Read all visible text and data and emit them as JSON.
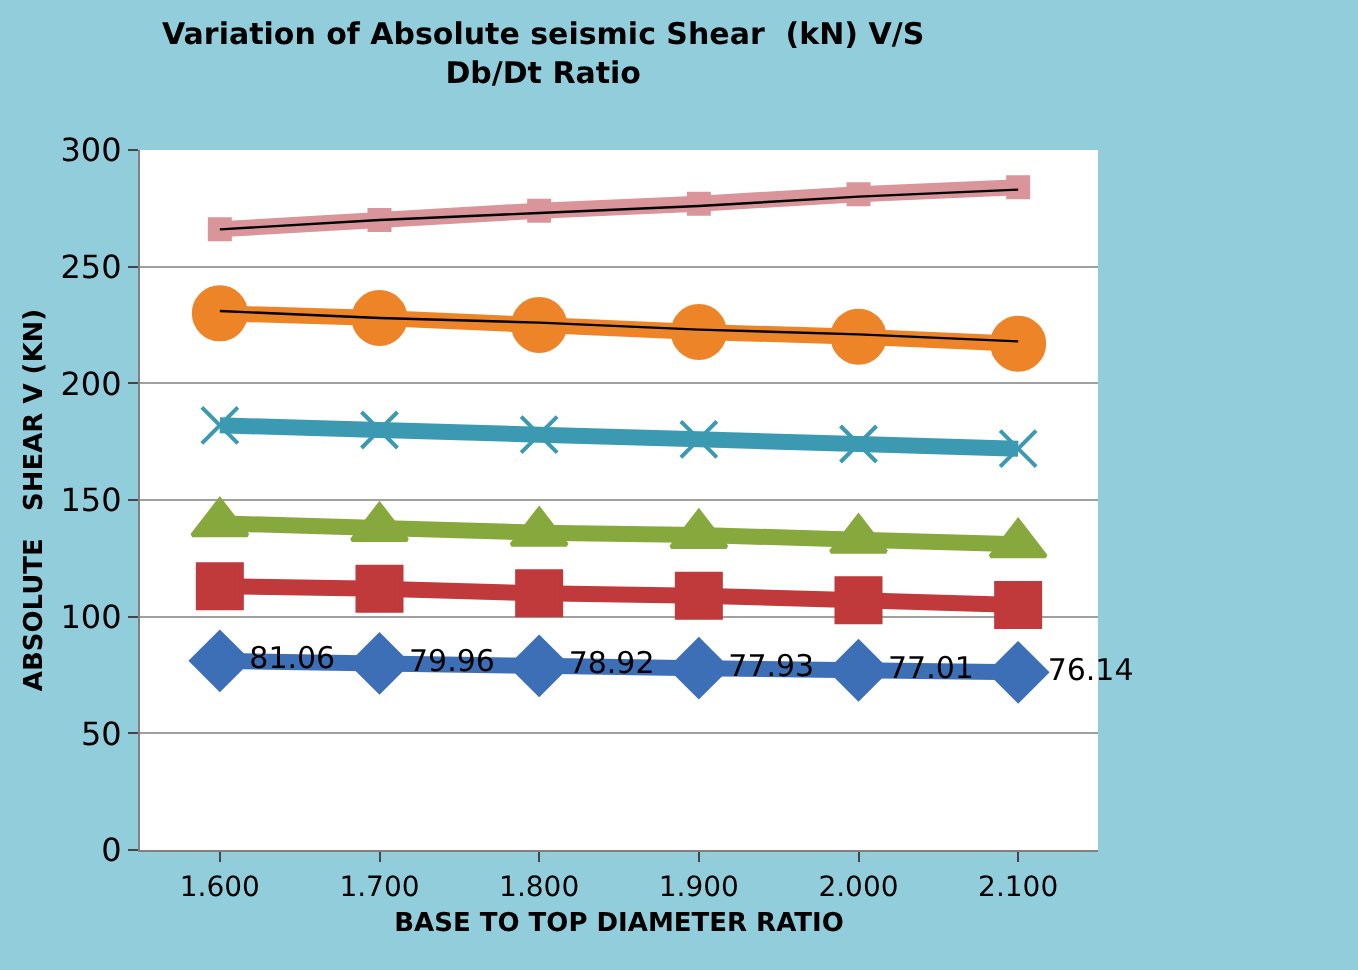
{
  "chart_data": {
    "type": "line",
    "title": "Variation of Absolute seismic Shear  (kN) V/S Db/Dt Ratio",
    "xlabel": "BASE TO TOP DIAMETER RATIO",
    "ylabel": "ABSOLUTE   SHEAR V (KN)",
    "categories": [
      "1.600",
      "1.700",
      "1.800",
      "1.900",
      "2.000",
      "2.100"
    ],
    "ylim": [
      0,
      300
    ],
    "yticks": [
      0,
      50,
      100,
      150,
      200,
      250,
      300
    ],
    "grid": "y",
    "series": [
      {
        "color": "#3d6fb6",
        "marker": "diamond",
        "values": [
          81.06,
          79.96,
          78.92,
          77.93,
          77.01,
          76.14
        ],
        "value_labels": [
          "81.06",
          "79.96",
          "78.92",
          "77.93",
          "77.01",
          "76.14"
        ]
      },
      {
        "color": "#c0393b",
        "marker": "square",
        "values": [
          113,
          112,
          110,
          109,
          107,
          105
        ]
      },
      {
        "color": "#86a83c",
        "marker": "triangle",
        "values": [
          140,
          138,
          136,
          135,
          133,
          131
        ]
      },
      {
        "color": "#3b9ab2",
        "marker": "cross",
        "values": [
          182,
          180,
          178,
          176,
          174,
          172
        ]
      },
      {
        "color": "#ee8428",
        "marker": "circle",
        "values": [
          230,
          228,
          225,
          222,
          220,
          217
        ]
      },
      {
        "color": "#d9959a",
        "marker": "square",
        "values": [
          266,
          270,
          274,
          277,
          281,
          284
        ]
      },
      {
        "color": "#000000",
        "marker": "none",
        "values": [
          231,
          228,
          226,
          223,
          221,
          218
        ]
      },
      {
        "color": "#000000",
        "marker": "none",
        "values": [
          266,
          270,
          273,
          276,
          280,
          283
        ]
      }
    ]
  }
}
